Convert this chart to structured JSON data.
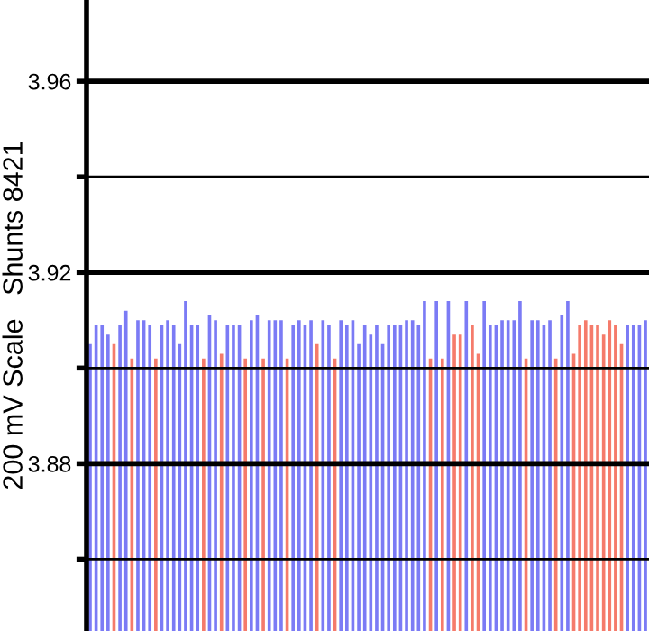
{
  "chart_data": {
    "type": "bar",
    "ylabel": "200 mV Scale   Shunts 8421",
    "categories": [
      null,
      null,
      null,
      null,
      null,
      null,
      null,
      null,
      null,
      null,
      null,
      null,
      null,
      null,
      null,
      null,
      null,
      null,
      null,
      null,
      null,
      null,
      null,
      null,
      null,
      null,
      null,
      null,
      null,
      null,
      null,
      null,
      null,
      null,
      null,
      null,
      null,
      null,
      null,
      null,
      null,
      null,
      null,
      null,
      null,
      null,
      null,
      null,
      null,
      null,
      null,
      null,
      null,
      null,
      null,
      null,
      null,
      null,
      null,
      null,
      null,
      null,
      null,
      null,
      null,
      null,
      null,
      null,
      null,
      null,
      null,
      null,
      null,
      null,
      null,
      null,
      null,
      null,
      null,
      null,
      null,
      null,
      null,
      null,
      null,
      null,
      null,
      null,
      null,
      null,
      null,
      null,
      null,
      null
    ],
    "values": [
      3.905,
      3.909,
      3.909,
      3.907,
      3.905,
      3.909,
      3.912,
      3.902,
      3.91,
      3.91,
      3.909,
      3.902,
      3.909,
      3.91,
      3.909,
      3.905,
      3.914,
      3.909,
      3.909,
      3.902,
      3.911,
      3.91,
      3.903,
      3.909,
      3.909,
      3.909,
      3.902,
      3.91,
      3.911,
      3.902,
      3.91,
      3.91,
      3.91,
      3.902,
      3.909,
      3.91,
      3.909,
      3.91,
      3.905,
      3.91,
      3.909,
      3.902,
      3.91,
      3.909,
      3.91,
      3.905,
      3.909,
      3.907,
      3.909,
      3.905,
      3.909,
      3.909,
      3.909,
      3.91,
      3.91,
      3.909,
      3.914,
      3.902,
      3.914,
      3.902,
      3.914,
      3.907,
      3.907,
      3.914,
      3.909,
      3.903,
      3.914,
      3.909,
      3.909,
      3.91,
      3.91,
      3.91,
      3.914,
      3.902,
      3.91,
      3.91,
      3.909,
      3.91,
      3.902,
      3.911,
      3.914,
      3.903,
      3.909,
      3.91,
      3.909,
      3.909,
      3.907,
      3.91,
      3.909,
      3.905,
      3.909,
      3.909,
      3.909,
      3.91
    ],
    "colors": [
      "#7b7bf5",
      "#7b7bf5",
      "#7b7bf5",
      "#7b7bf5",
      "#f57b6b",
      "#7b7bf5",
      "#7b7bf5",
      "#f57b6b",
      "#7b7bf5",
      "#7b7bf5",
      "#7b7bf5",
      "#f57b6b",
      "#7b7bf5",
      "#7b7bf5",
      "#7b7bf5",
      "#7b7bf5",
      "#7b7bf5",
      "#7b7bf5",
      "#7b7bf5",
      "#f57b6b",
      "#7b7bf5",
      "#7b7bf5",
      "#f57b6b",
      "#7b7bf5",
      "#7b7bf5",
      "#7b7bf5",
      "#f57b6b",
      "#7b7bf5",
      "#7b7bf5",
      "#f57b6b",
      "#7b7bf5",
      "#7b7bf5",
      "#7b7bf5",
      "#f57b6b",
      "#7b7bf5",
      "#7b7bf5",
      "#7b7bf5",
      "#7b7bf5",
      "#f57b6b",
      "#7b7bf5",
      "#7b7bf5",
      "#f57b6b",
      "#7b7bf5",
      "#7b7bf5",
      "#7b7bf5",
      "#7b7bf5",
      "#7b7bf5",
      "#7b7bf5",
      "#7b7bf5",
      "#7b7bf5",
      "#7b7bf5",
      "#7b7bf5",
      "#7b7bf5",
      "#7b7bf5",
      "#7b7bf5",
      "#7b7bf5",
      "#7b7bf5",
      "#f57b6b",
      "#7b7bf5",
      "#f57b6b",
      "#7b7bf5",
      "#f57b6b",
      "#f57b6b",
      "#7b7bf5",
      "#f57b6b",
      "#f57b6b",
      "#7b7bf5",
      "#7b7bf5",
      "#7b7bf5",
      "#7b7bf5",
      "#7b7bf5",
      "#7b7bf5",
      "#7b7bf5",
      "#f57b6b",
      "#7b7bf5",
      "#7b7bf5",
      "#7b7bf5",
      "#7b7bf5",
      "#f57b6b",
      "#7b7bf5",
      "#7b7bf5",
      "#f57b6b",
      "#f57b6b",
      "#f57b6b",
      "#f57b6b",
      "#f57b6b",
      "#f57b6b",
      "#f57b6b",
      "#f57b6b",
      "#f57b6b",
      "#7b7bf5",
      "#7b7bf5",
      "#7b7bf5",
      "#7b7bf5"
    ],
    "ylim": [
      3.845,
      3.977
    ],
    "yticks": [
      3.96,
      {
        "value": 3.94,
        "label": null
      },
      3.92,
      {
        "value": 3.9,
        "label": null
      },
      3.88,
      {
        "value": 3.86,
        "label": null
      }
    ],
    "grid": "y"
  }
}
